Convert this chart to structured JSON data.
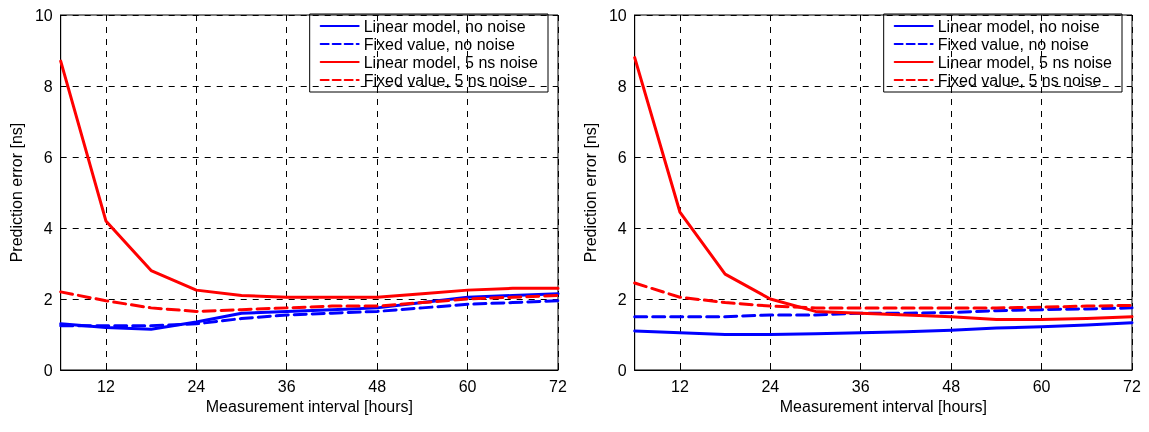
{
  "chart_data": [
    {
      "type": "line",
      "xlabel": "Measurement interval [hours]",
      "ylabel": "Prediction error [ns]",
      "x": [
        6,
        12,
        18,
        24,
        30,
        36,
        42,
        48,
        54,
        60,
        66,
        72
      ],
      "xlim": [
        6,
        72
      ],
      "xticks": [
        12,
        24,
        36,
        48,
        60,
        72
      ],
      "ylim": [
        0,
        10
      ],
      "yticks": [
        0,
        2,
        4,
        6,
        8,
        10
      ],
      "grid": true,
      "legend": "top right",
      "marker": "none",
      "series": [
        {
          "name": "Linear model, no noise",
          "color": "#0000ff",
          "line_style": "solid",
          "values": [
            1.3,
            1.2,
            1.15,
            1.35,
            1.6,
            1.65,
            1.7,
            1.75,
            1.9,
            2.05,
            2.1,
            2.15
          ]
        },
        {
          "name": "Fixed value, no noise",
          "color": "#0000ff",
          "line_style": "dashed",
          "values": [
            1.25,
            1.25,
            1.25,
            1.3,
            1.45,
            1.55,
            1.6,
            1.65,
            1.75,
            1.85,
            1.9,
            1.95
          ]
        },
        {
          "name": "Linear model, 5 ns noise",
          "color": "#ff0000",
          "line_style": "solid",
          "values": [
            8.7,
            4.2,
            2.8,
            2.25,
            2.1,
            2.05,
            2.05,
            2.05,
            2.15,
            2.25,
            2.3,
            2.3
          ]
        },
        {
          "name": "Fixed value, 5 ns noise",
          "color": "#ff0000",
          "line_style": "dashed",
          "values": [
            2.2,
            1.95,
            1.75,
            1.65,
            1.7,
            1.75,
            1.8,
            1.8,
            1.9,
            2.0,
            2.05,
            2.1
          ]
        }
      ]
    },
    {
      "type": "line",
      "xlabel": "Measurement interval [hours]",
      "ylabel": "Prediction error [ns]",
      "x": [
        6,
        12,
        18,
        24,
        30,
        36,
        42,
        48,
        54,
        60,
        66,
        72
      ],
      "xlim": [
        6,
        72
      ],
      "xticks": [
        12,
        24,
        36,
        48,
        60,
        72
      ],
      "ylim": [
        0,
        10
      ],
      "yticks": [
        0,
        2,
        4,
        6,
        8,
        10
      ],
      "grid": true,
      "legend": "top right",
      "marker": "none",
      "series": [
        {
          "name": "Linear model, no noise",
          "color": "#0000ff",
          "line_style": "solid",
          "values": [
            1.1,
            1.05,
            1.0,
            1.0,
            1.02,
            1.05,
            1.08,
            1.12,
            1.18,
            1.22,
            1.27,
            1.33
          ]
        },
        {
          "name": "Fixed value, no noise",
          "color": "#0000ff",
          "line_style": "dashed",
          "values": [
            1.5,
            1.5,
            1.5,
            1.55,
            1.55,
            1.6,
            1.6,
            1.62,
            1.67,
            1.7,
            1.72,
            1.75
          ]
        },
        {
          "name": "Linear model, 5 ns noise",
          "color": "#ff0000",
          "line_style": "solid",
          "values": [
            8.8,
            4.45,
            2.7,
            2.0,
            1.65,
            1.6,
            1.55,
            1.5,
            1.42,
            1.42,
            1.45,
            1.5
          ]
        },
        {
          "name": "Fixed value, 5 ns noise",
          "color": "#ff0000",
          "line_style": "dashed",
          "values": [
            2.45,
            2.05,
            1.9,
            1.8,
            1.75,
            1.75,
            1.75,
            1.75,
            1.75,
            1.77,
            1.8,
            1.82
          ]
        }
      ]
    }
  ]
}
